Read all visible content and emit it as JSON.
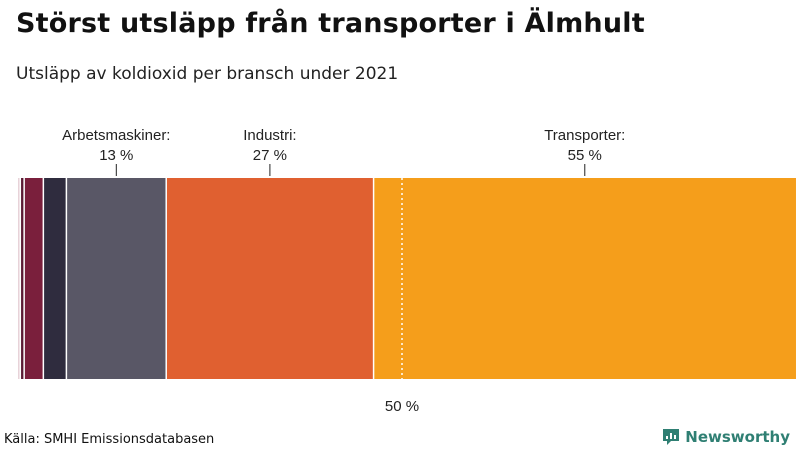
{
  "header": {
    "title": "Störst utsläpp från transporter i Älmhult",
    "subtitle": "Utsläpp av koldioxid per bransch under 2021"
  },
  "footer": {
    "source": "Källa: SMHI Emissionsdatabasen",
    "brand": "Newsworthy"
  },
  "colors": {
    "brand": "#2f7f73",
    "reference_line": "#ffffff",
    "label_line": "#222222"
  },
  "chart_data": {
    "type": "bar",
    "orientation": "horizontal-stacked-100",
    "total": 100,
    "segments": [
      {
        "value": 0.3,
        "color": "#e8d3d9",
        "label": "",
        "value_label": ""
      },
      {
        "value": 0.5,
        "color": "#5a1a33",
        "label": "",
        "value_label": ""
      },
      {
        "value": 2.5,
        "color": "#7a1f3c",
        "label": "",
        "value_label": ""
      },
      {
        "value": 3.0,
        "color": "#2f2c3e",
        "label": "",
        "value_label": ""
      },
      {
        "value": 13,
        "color": "#595766",
        "label": "Arbetsmaskiner:",
        "value_label": "13 %"
      },
      {
        "value": 27,
        "color": "#e06030",
        "label": "Industri:",
        "value_label": "27 %"
      },
      {
        "value": 55,
        "color": "#f59e1b",
        "label": "Transporter:",
        "value_label": "55 %"
      }
    ],
    "reference_line": {
      "value": 50,
      "label": "50 %",
      "style": "dotted"
    }
  }
}
